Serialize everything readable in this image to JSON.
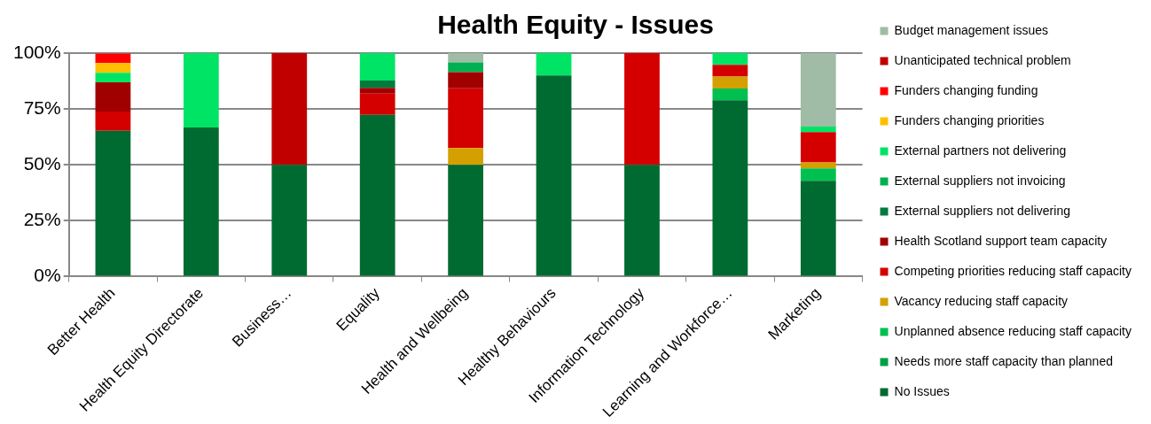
{
  "chart_data": {
    "type": "bar",
    "title": "Health Equity - Issues",
    "stacked": true,
    "grid": "y",
    "legend": "right",
    "categories": [
      "Better Health",
      "Health Equity Directorate",
      "Business…",
      "Equality",
      "Health and Wellbeing",
      "Healthy Behaviours",
      "Information Technology",
      "Learning and Workforce…",
      "Marketing"
    ],
    "ylim": [
      0,
      100
    ],
    "yticks": [
      {
        "value": 0,
        "label": "0%"
      },
      {
        "value": 25,
        "label": "25%"
      },
      {
        "value": 50,
        "label": "50%"
      },
      {
        "value": 75,
        "label": "75%"
      },
      {
        "value": 100,
        "label": "100%"
      }
    ],
    "series": [
      {
        "name": "No Issues",
        "color": "#006b31",
        "values": [
          65.2,
          66.7,
          50,
          72.4,
          50,
          90,
          50,
          78.9,
          42.9
        ]
      },
      {
        "name": "Needs more staff capacity than planned",
        "color": "#00a04a",
        "values": [
          null,
          null,
          null,
          null,
          null,
          null,
          null,
          null,
          null
        ]
      },
      {
        "name": "Unplanned absence reducing staff capacity",
        "color": "#00c050",
        "values": [
          null,
          null,
          null,
          null,
          null,
          null,
          null,
          5.3,
          5.5
        ]
      },
      {
        "name": "Vacancy reducing staff capacity",
        "color": "#d4a000",
        "values": [
          null,
          null,
          null,
          null,
          7.5,
          null,
          null,
          5.3,
          2.7
        ]
      },
      {
        "name": "Competing priorities reducing staff capacity",
        "color": "#d40000",
        "values": [
          8.7,
          null,
          null,
          9.5,
          26.8,
          null,
          50,
          5.3,
          13.6
        ]
      },
      {
        "name": "Health Scotland support team capacity",
        "color": "#a00000",
        "values": [
          13,
          null,
          null,
          2.6,
          7.2,
          null,
          null,
          null,
          null
        ]
      },
      {
        "name": "External suppliers not delivering",
        "color": "#007a3d",
        "values": [
          null,
          null,
          null,
          3.2,
          null,
          null,
          null,
          null,
          null
        ]
      },
      {
        "name": "External suppliers not invoicing",
        "color": "#00b050",
        "values": [
          null,
          null,
          null,
          null,
          4.3,
          null,
          null,
          null,
          null
        ]
      },
      {
        "name": "External partners not delivering",
        "color": "#00e466",
        "values": [
          4.3,
          33.3,
          null,
          12.3,
          null,
          10,
          null,
          5.2,
          2.4
        ]
      },
      {
        "name": "Funders changing priorities",
        "color": "#ffc000",
        "values": [
          4.3,
          null,
          null,
          null,
          null,
          null,
          null,
          null,
          null
        ]
      },
      {
        "name": "Funders changing funding",
        "color": "#ff0000",
        "values": [
          4.3,
          null,
          null,
          null,
          null,
          null,
          null,
          null,
          null
        ]
      },
      {
        "name": "Unanticipated technical problem",
        "color": "#c00000",
        "values": [
          null,
          null,
          50,
          null,
          null,
          null,
          null,
          null,
          null
        ]
      },
      {
        "name": "Budget management issues",
        "color": "#a0bca6",
        "values": [
          null,
          null,
          null,
          null,
          4.2,
          null,
          null,
          null,
          32.9
        ]
      }
    ]
  }
}
